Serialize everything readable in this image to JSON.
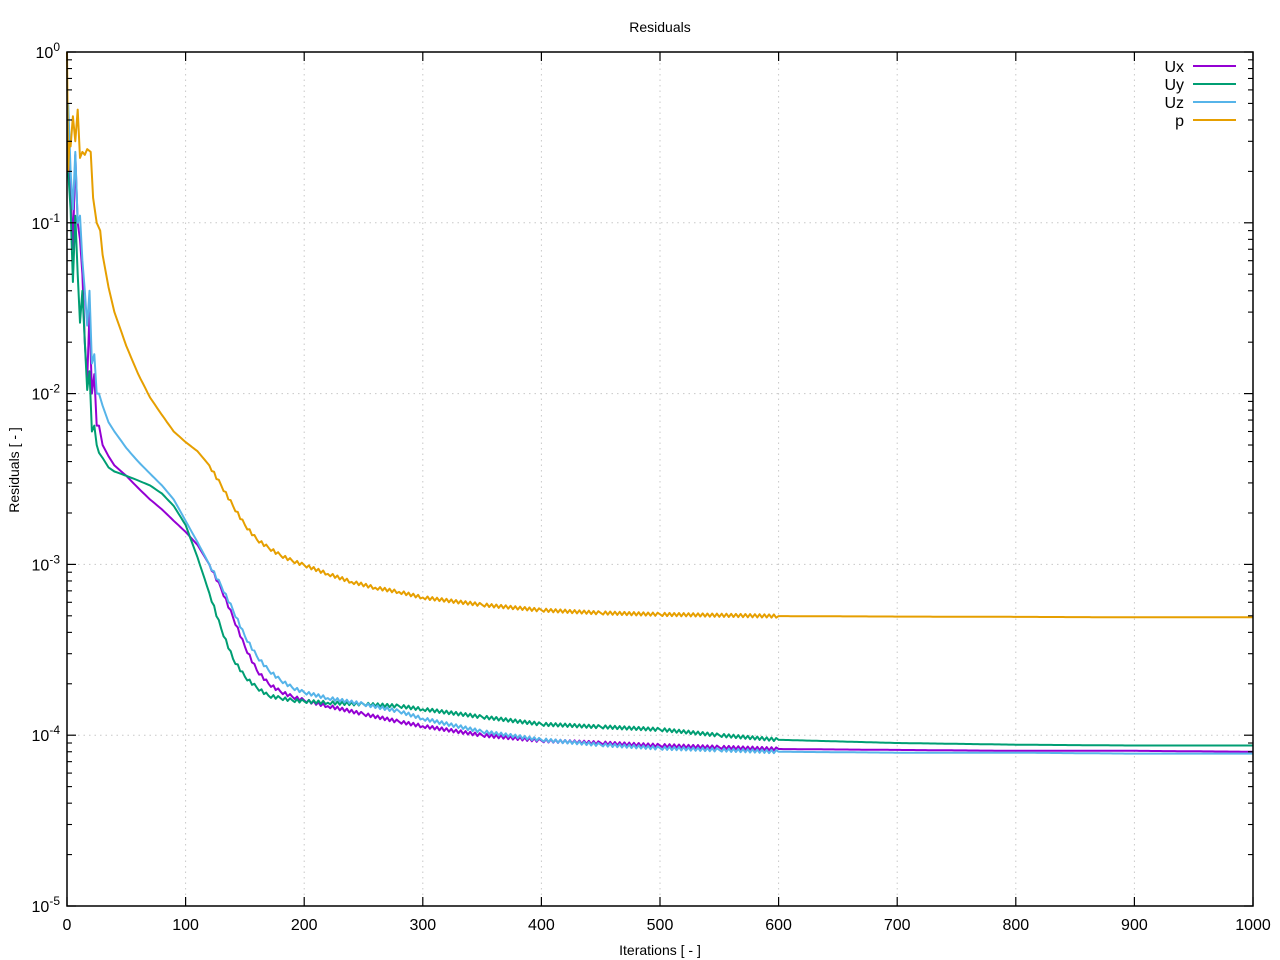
{
  "chart_data": {
    "type": "line",
    "title": "Residuals",
    "xlabel": "Iterations [ - ]",
    "ylabel": "Residuals [ - ]",
    "xlim": [
      0,
      1000
    ],
    "ylim": [
      1e-05,
      1
    ],
    "yscale": "log",
    "grid": true,
    "legend_position": "top-right",
    "x_ticks": [
      0,
      100,
      200,
      300,
      400,
      500,
      600,
      700,
      800,
      900,
      1000
    ],
    "x_tick_labels": [
      "0",
      "100",
      "200",
      "300",
      "400",
      "500",
      "600",
      "700",
      "800",
      "900",
      "1000"
    ],
    "y_ticks": [
      1,
      0.1,
      0.01,
      0.001,
      0.0001,
      1e-05
    ],
    "y_tick_labels": [
      {
        "base": "10",
        "exp": "0"
      },
      {
        "base": "10",
        "exp": "-1"
      },
      {
        "base": "10",
        "exp": "-2"
      },
      {
        "base": "10",
        "exp": "-3"
      },
      {
        "base": "10",
        "exp": "-4"
      },
      {
        "base": "10",
        "exp": "-5"
      }
    ],
    "series": [
      {
        "name": "Ux",
        "color": "#9400d3",
        "x": [
          1,
          3,
          5,
          7,
          9,
          11,
          13,
          15,
          17,
          19,
          21,
          23,
          25,
          27,
          30,
          35,
          40,
          50,
          60,
          70,
          80,
          90,
          100,
          110,
          120,
          130,
          140,
          150,
          160,
          170,
          180,
          190,
          200,
          220,
          250,
          280,
          300,
          350,
          400,
          450,
          500,
          550,
          600,
          700,
          800,
          900,
          1000
        ],
        "y": [
          0.3,
          0.15,
          0.07,
          0.25,
          0.1,
          0.08,
          0.05,
          0.02,
          0.012,
          0.03,
          0.01,
          0.013,
          0.0065,
          0.0065,
          0.005,
          0.0043,
          0.0038,
          0.0033,
          0.0028,
          0.0024,
          0.0021,
          0.0018,
          0.00155,
          0.0013,
          0.001,
          0.00072,
          0.00049,
          0.00033,
          0.00024,
          0.0002,
          0.00018,
          0.000168,
          0.00016,
          0.000148,
          0.000133,
          0.00012,
          0.000113,
          0.0001,
          9.3e-05,
          9e-05,
          8.7e-05,
          8.5e-05,
          8.3e-05,
          8.2e-05,
          8.1e-05,
          8.1e-05,
          8e-05
        ]
      },
      {
        "name": "Uy",
        "color": "#009e73",
        "x": [
          1,
          3,
          5,
          7,
          9,
          11,
          13,
          15,
          17,
          19,
          21,
          23,
          25,
          27,
          30,
          35,
          40,
          50,
          60,
          70,
          80,
          90,
          100,
          110,
          120,
          130,
          140,
          150,
          160,
          170,
          180,
          190,
          200,
          220,
          250,
          280,
          300,
          350,
          400,
          450,
          500,
          550,
          600,
          700,
          800,
          900,
          1000
        ],
        "y": [
          0.2,
          0.12,
          0.045,
          0.11,
          0.05,
          0.026,
          0.04,
          0.02,
          0.0105,
          0.0135,
          0.006,
          0.0065,
          0.005,
          0.0045,
          0.0042,
          0.0037,
          0.0035,
          0.0033,
          0.0031,
          0.0029,
          0.0026,
          0.0022,
          0.0017,
          0.0011,
          0.00068,
          0.00042,
          0.00028,
          0.00022,
          0.00019,
          0.00017,
          0.000165,
          0.00016,
          0.000158,
          0.000155,
          0.000152,
          0.000148,
          0.000142,
          0.000128,
          0.000116,
          0.000112,
          0.000108,
          0.0001,
          9.4e-05,
          9e-05,
          8.8e-05,
          8.7e-05,
          8.7e-05
        ]
      },
      {
        "name": "Uz",
        "color": "#56b4e9",
        "x": [
          1,
          3,
          5,
          7,
          9,
          11,
          13,
          15,
          17,
          19,
          21,
          23,
          25,
          27,
          30,
          35,
          40,
          50,
          60,
          70,
          80,
          90,
          100,
          110,
          120,
          130,
          140,
          150,
          160,
          170,
          180,
          190,
          200,
          220,
          250,
          280,
          300,
          350,
          400,
          450,
          500,
          550,
          600,
          700,
          800,
          900,
          1000
        ],
        "y": [
          0.5,
          0.2,
          0.12,
          0.26,
          0.1,
          0.11,
          0.06,
          0.04,
          0.025,
          0.04,
          0.015,
          0.017,
          0.01,
          0.01,
          0.0085,
          0.0068,
          0.006,
          0.0048,
          0.004,
          0.0034,
          0.0029,
          0.0024,
          0.0018,
          0.00135,
          0.001,
          0.00075,
          0.00054,
          0.00038,
          0.00029,
          0.00024,
          0.00021,
          0.00019,
          0.000178,
          0.000165,
          0.000152,
          0.000138,
          0.000125,
          0.000105,
          9.4e-05,
          8.8e-05,
          8.4e-05,
          8.2e-05,
          8e-05,
          7.9e-05,
          7.9e-05,
          7.8e-05,
          7.8e-05
        ]
      },
      {
        "name": "p",
        "color": "#e69f00",
        "x": [
          0,
          1,
          2,
          3,
          5,
          7,
          9,
          11,
          13,
          15,
          17,
          20,
          22,
          25,
          28,
          30,
          35,
          40,
          50,
          60,
          70,
          80,
          90,
          100,
          110,
          120,
          130,
          140,
          150,
          160,
          170,
          180,
          190,
          200,
          220,
          240,
          260,
          280,
          300,
          350,
          400,
          450,
          500,
          600,
          700,
          800,
          900,
          1000
        ],
        "y": [
          1.0,
          0.2,
          0.3,
          0.28,
          0.42,
          0.3,
          0.46,
          0.24,
          0.26,
          0.25,
          0.27,
          0.26,
          0.14,
          0.1,
          0.09,
          0.065,
          0.042,
          0.03,
          0.019,
          0.013,
          0.0095,
          0.0075,
          0.006,
          0.0052,
          0.0046,
          0.0038,
          0.0029,
          0.0022,
          0.0017,
          0.0014,
          0.00125,
          0.00113,
          0.00105,
          0.00099,
          0.00088,
          0.00079,
          0.00073,
          0.00069,
          0.00064,
          0.00058,
          0.00054,
          0.00052,
          0.00051,
          0.000498,
          0.000495,
          0.000493,
          0.00049,
          0.00049
        ]
      }
    ]
  }
}
